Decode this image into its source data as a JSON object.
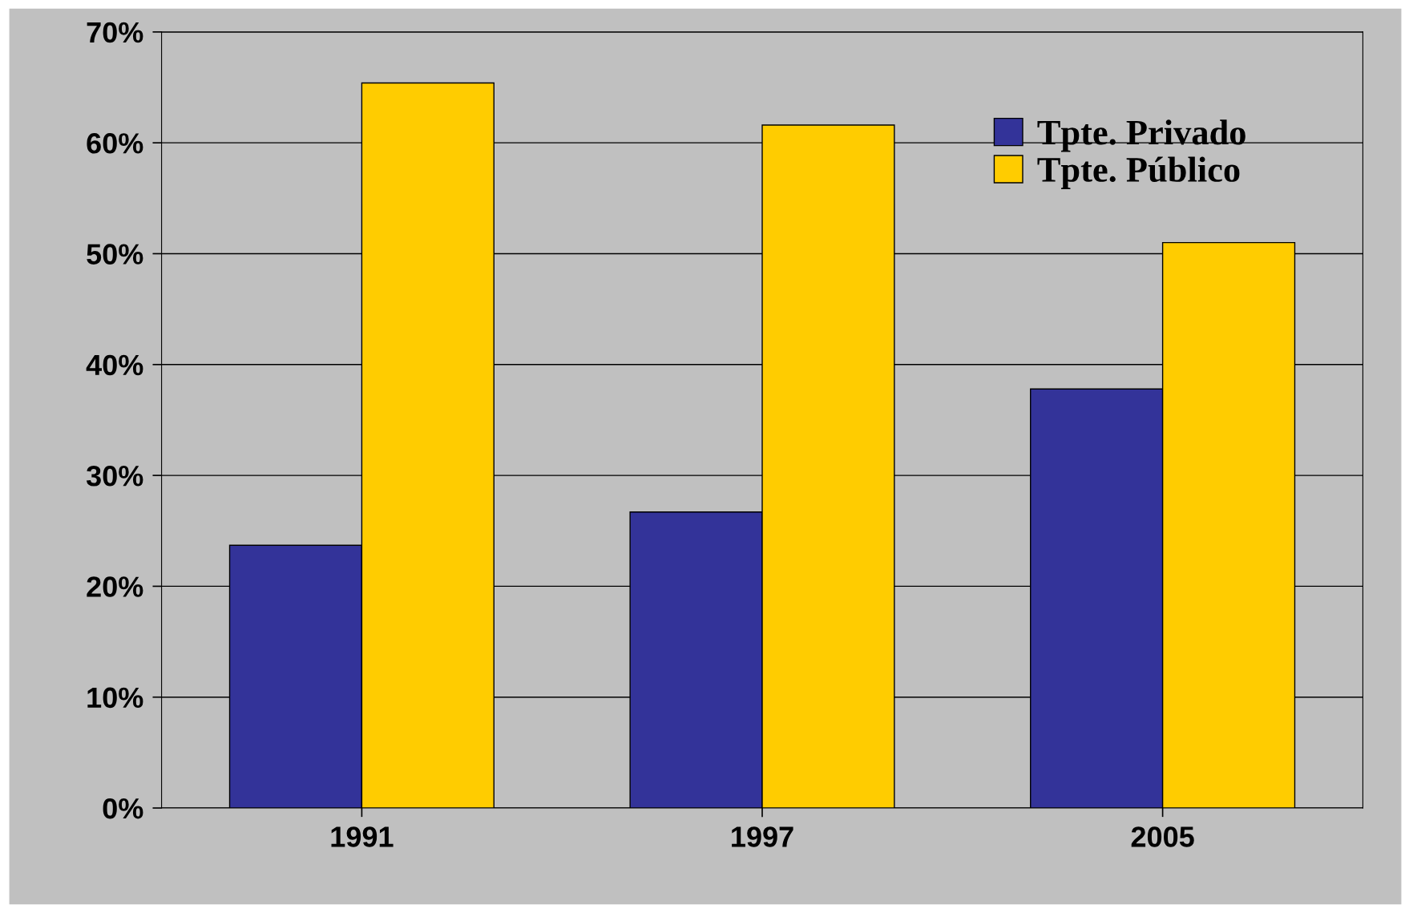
{
  "chart_data": {
    "type": "bar",
    "categories": [
      "1991",
      "1997",
      "2005"
    ],
    "series": [
      {
        "name": "Tpte. Privado",
        "color": "#333399",
        "values": [
          23.7,
          26.7,
          37.8
        ]
      },
      {
        "name": "Tpte. Público",
        "color": "#ffcc00",
        "values": [
          65.4,
          61.6,
          51.0
        ]
      }
    ],
    "ylim": [
      0,
      70
    ],
    "yticks": [
      {
        "value": 0,
        "label": "0%"
      },
      {
        "value": 10,
        "label": "10%"
      },
      {
        "value": 20,
        "label": "20%"
      },
      {
        "value": 30,
        "label": "30%"
      },
      {
        "value": 40,
        "label": "40%"
      },
      {
        "value": 50,
        "label": "50%"
      },
      {
        "value": 60,
        "label": "60%"
      },
      {
        "value": 70,
        "label": "70%"
      }
    ],
    "grid": "y",
    "legend": "top right"
  }
}
